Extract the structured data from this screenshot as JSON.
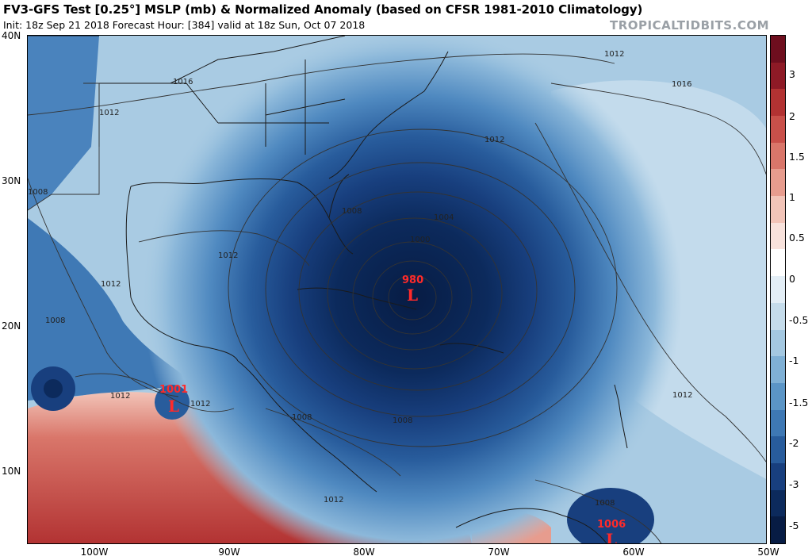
{
  "header": {
    "title": "FV3-GFS Test [0.25°] MSLP (mb) & Normalized Anomaly (based on CFSR 1981-2010 Climatology)",
    "subtitle": "Init: 18z Sep 21 2018   Forecast Hour: [384]   valid at 18z Sun, Oct 07 2018",
    "brand": "TROPICALTIDBITS.COM"
  },
  "axes": {
    "lat_labels": [
      "40N",
      "30N",
      "20N",
      "10N"
    ],
    "lon_labels": [
      "100W",
      "90W",
      "80W",
      "70W",
      "60W",
      "50W"
    ]
  },
  "isobars": {
    "labels": [
      "1012",
      "1016",
      "1012",
      "1016",
      "1012",
      "1008",
      "1012",
      "1012",
      "1008",
      "1008",
      "1004",
      "1000",
      "1012",
      "1012",
      "1008",
      "1008",
      "1012",
      "1008",
      "1012",
      "1008"
    ]
  },
  "lows": [
    {
      "pressure": "980",
      "symbol": "L"
    },
    {
      "pressure": "1001",
      "symbol": "L"
    },
    {
      "pressure": "1006",
      "symbol": "L"
    }
  ],
  "colorbar": {
    "labels": [
      "3",
      "2",
      "1.5",
      "1",
      "0.5",
      "0",
      "-0.5",
      "-1",
      "-1.5",
      "-2",
      "-3",
      "-5"
    ],
    "colors": [
      "#6e0e1e",
      "#8e1a26",
      "#b23232",
      "#c9504a",
      "#d9766a",
      "#e79c8e",
      "#f2c4b8",
      "#f8e2dc",
      "#ffffff",
      "#e3eef6",
      "#c5dceb",
      "#a4c8e1",
      "#7fb0d5",
      "#5b95c6",
      "#3e78b4",
      "#285c9c",
      "#183f7e",
      "#0c2a5c",
      "#071c44"
    ]
  }
}
